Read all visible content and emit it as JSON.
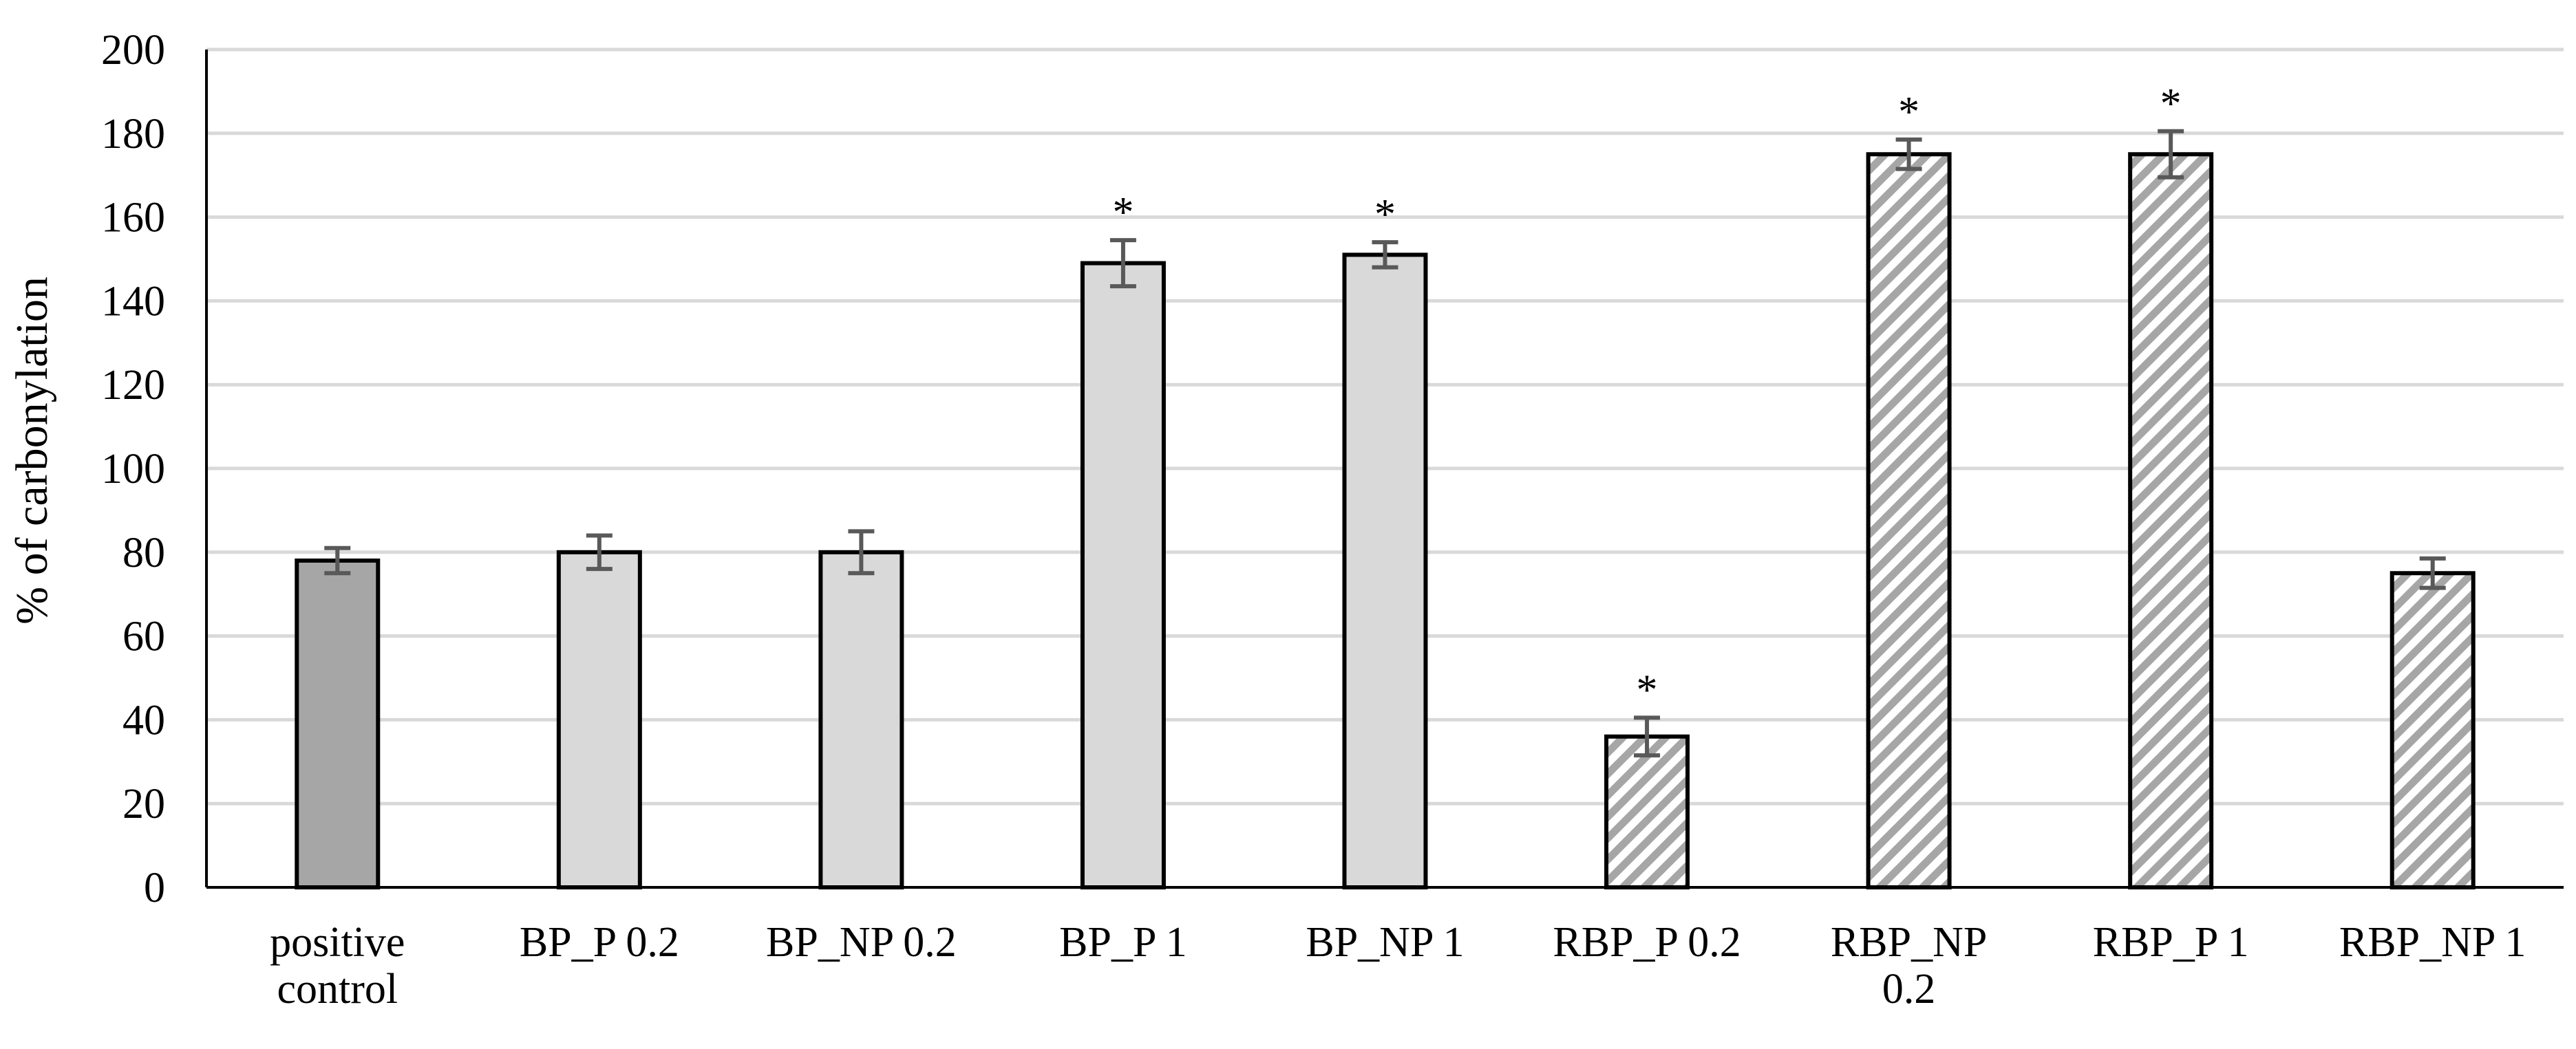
{
  "chart_data": {
    "type": "bar",
    "title": "",
    "xlabel": "",
    "ylabel": "% of carbonylation",
    "ylim": [
      0,
      200
    ],
    "yticks": [
      0,
      20,
      40,
      60,
      80,
      100,
      120,
      140,
      160,
      180,
      200
    ],
    "grid": true,
    "legend": "none",
    "categories": [
      "positive control",
      "BP_P 0.2",
      "BP_NP 0.2",
      "BP_P 1",
      "BP_NP 1",
      "RBP_P 0.2",
      "RBP_NP 0.2",
      "RBP_P 1",
      "RBP_NP 1"
    ],
    "category_lines": [
      [
        "positive",
        "control"
      ],
      [
        "BP_P 0.2"
      ],
      [
        "BP_NP 0.2"
      ],
      [
        "BP_P 1"
      ],
      [
        "BP_NP 1"
      ],
      [
        "RBP_P 0.2"
      ],
      [
        "RBP_NP",
        "0.2"
      ],
      [
        "RBP_P 1"
      ],
      [
        "RBP_NP 1"
      ]
    ],
    "values": [
      78,
      80,
      80,
      149,
      151,
      36,
      175,
      175,
      75
    ],
    "errors": [
      3,
      4,
      5,
      5.5,
      3,
      4.5,
      3.5,
      5.5,
      3.5
    ],
    "significant": [
      false,
      false,
      false,
      true,
      true,
      true,
      true,
      true,
      false
    ],
    "significance_marker": "*",
    "fills": [
      "dark-gray",
      "light-gray",
      "light-gray",
      "light-gray",
      "light-gray",
      "hatched",
      "hatched",
      "hatched",
      "hatched"
    ],
    "colors": {
      "dark_gray": "#a6a6a6",
      "light_gray": "#d9d9d9",
      "hatch": "#a6a6a6",
      "outline": "#000000",
      "error_bar": "#595959",
      "grid": "#d9d9d9",
      "axis": "#000000"
    }
  }
}
